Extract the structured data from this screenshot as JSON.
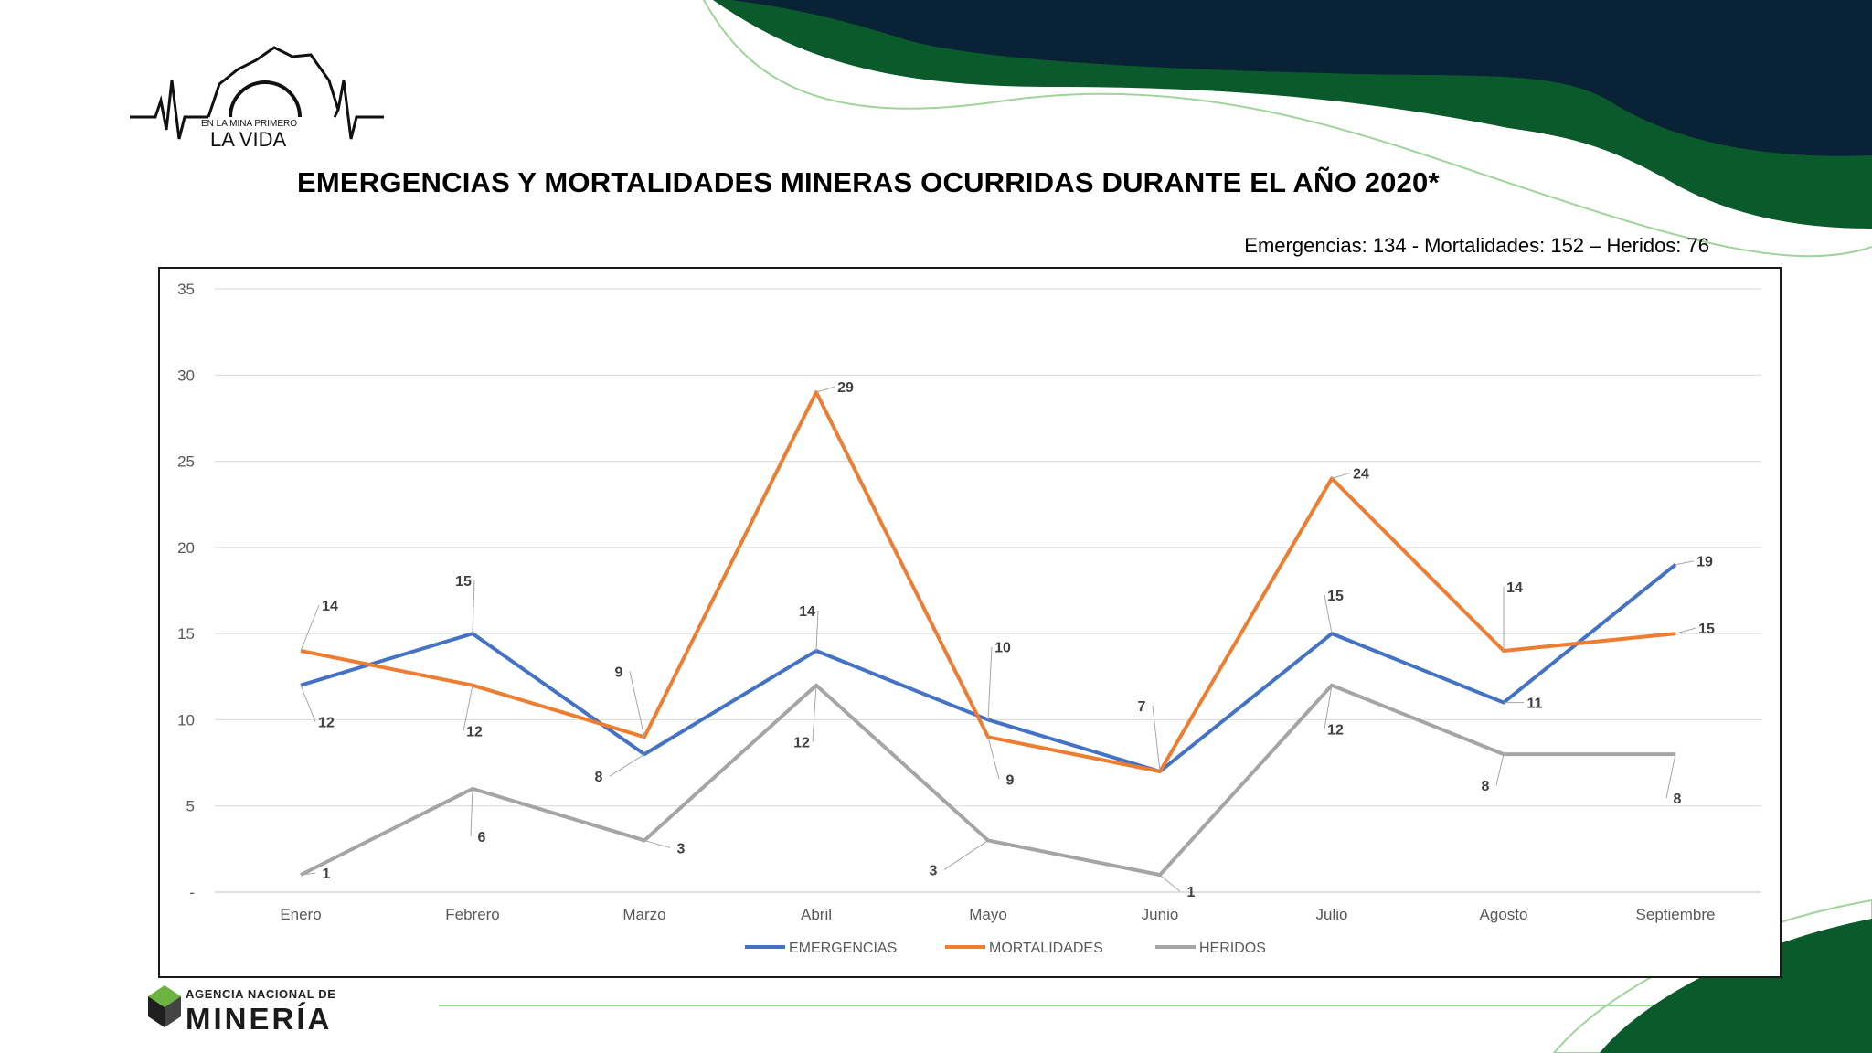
{
  "logo": {
    "line1": "EN LA MINA PRIMERO",
    "line2": "LA VIDA"
  },
  "title": "EMERGENCIAS Y MORTALIDADES MINERAS OCURRIDAS DURANTE EL AÑO 2020*",
  "summary": "Emergencias: 134 - Mortalidades: 152 – Heridos: 76",
  "footer": {
    "agency_sub": "AGENCIA NACIONAL DE",
    "agency_main": "MINERÍA"
  },
  "colors": {
    "accent_dark": "#0a2236",
    "accent_green": "#0b5a2c",
    "light_green": "#9fd49a"
  },
  "chart_data": {
    "type": "line",
    "categories": [
      "Enero",
      "Febrero",
      "Marzo",
      "Abril",
      "Mayo",
      "Junio",
      "Julio",
      "Agosto",
      "Septiembre"
    ],
    "ylim": [
      0,
      35
    ],
    "yticks": [
      "-",
      "5",
      "10",
      "15",
      "20",
      "25",
      "30",
      "35"
    ],
    "grid": true,
    "legend": "bottom",
    "series": [
      {
        "name": "EMERGENCIAS",
        "color": "#4472c4",
        "values": [
          12,
          15,
          8,
          14,
          10,
          7,
          15,
          11,
          19
        ]
      },
      {
        "name": "MORTALIDADES",
        "color": "#ed7d31",
        "values": [
          14,
          12,
          9,
          29,
          9,
          7,
          24,
          14,
          15
        ]
      },
      {
        "name": "HERIDOS",
        "color": "#a5a5a5",
        "values": [
          1,
          6,
          3,
          12,
          3,
          1,
          12,
          8,
          8
        ]
      }
    ]
  }
}
